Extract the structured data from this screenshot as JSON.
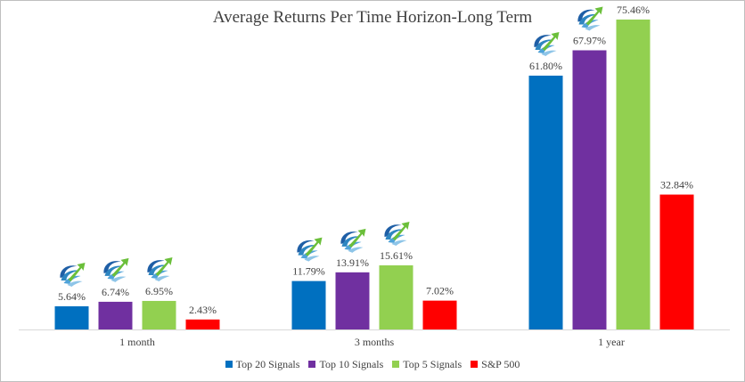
{
  "chart_data": {
    "type": "bar",
    "title": "Average Returns Per Time Horizon-Long Term",
    "categories": [
      "1 month",
      "3 months",
      "1 year"
    ],
    "ylim": [
      0,
      80
    ],
    "grid": false,
    "legend_position": "bottom",
    "series": [
      {
        "name": "Top 20 Signals",
        "color": "#0070C0",
        "values": [
          5.64,
          11.79,
          61.8
        ],
        "labels": [
          "5.64%",
          "11.79%",
          "61.80%"
        ],
        "logo_icon": true
      },
      {
        "name": "Top 10 Signals",
        "color": "#7030A0",
        "values": [
          6.74,
          13.91,
          67.97
        ],
        "labels": [
          "6.74%",
          "13.91%",
          "67.97%"
        ],
        "logo_icon": true
      },
      {
        "name": "Top 5 Signals",
        "color": "#92D050",
        "values": [
          6.95,
          15.61,
          75.46
        ],
        "labels": [
          "6.95%",
          "15.61%",
          "75.46%"
        ],
        "logo_icon": true
      },
      {
        "name": "S&P 500",
        "color": "#FF0000",
        "values": [
          2.43,
          7.02,
          32.84
        ],
        "labels": [
          "2.43%",
          "7.02%",
          "32.84%"
        ],
        "logo_icon": false
      }
    ]
  }
}
